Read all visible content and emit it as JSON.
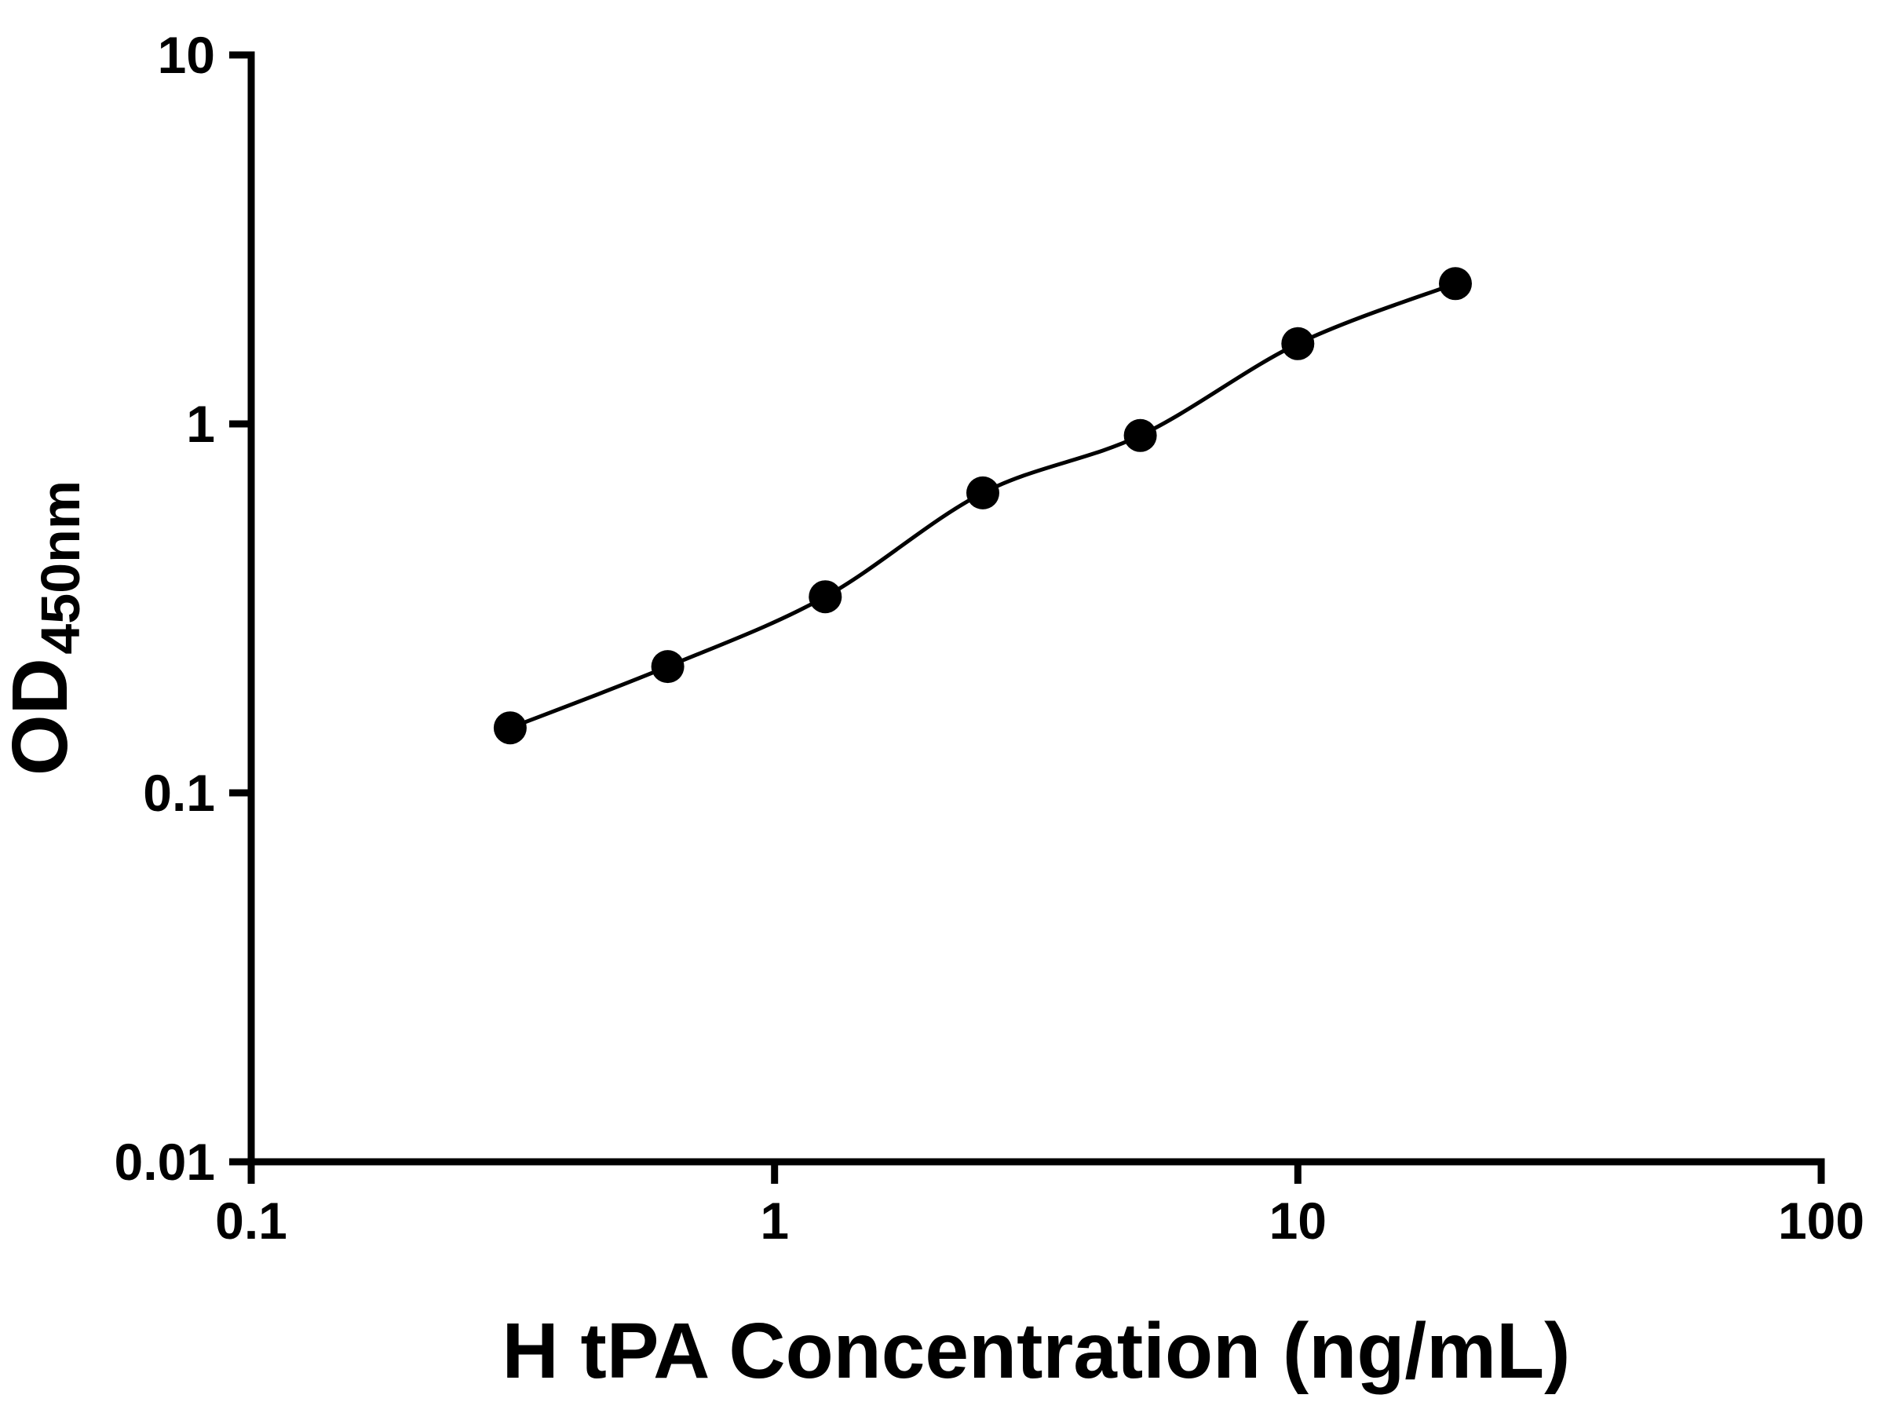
{
  "chart_data": {
    "type": "scatter",
    "x": [
      0.3125,
      0.625,
      1.25,
      2.5,
      5,
      10,
      20
    ],
    "y": [
      0.15,
      0.22,
      0.34,
      0.65,
      0.93,
      1.65,
      2.4
    ],
    "title": "",
    "xlabel": "H tPA Concentration (ng/mL)",
    "ylabel_main": "OD",
    "ylabel_sub": "450nm",
    "xscale": "log",
    "yscale": "log",
    "xlim": [
      0.1,
      100
    ],
    "ylim": [
      0.01,
      10
    ],
    "x_ticks": [
      0.1,
      1,
      10,
      100
    ],
    "x_tick_labels": [
      "0.1",
      "1",
      "10",
      "100"
    ],
    "y_ticks": [
      0.01,
      0.1,
      1,
      10
    ],
    "y_tick_labels": [
      "0.01",
      "0.1",
      "1",
      "10"
    ],
    "grid": false,
    "legend": false,
    "line_style": "smooth",
    "marker_shape": "circle",
    "marker_color": "#000000",
    "line_color": "#000000",
    "background": "#ffffff"
  }
}
